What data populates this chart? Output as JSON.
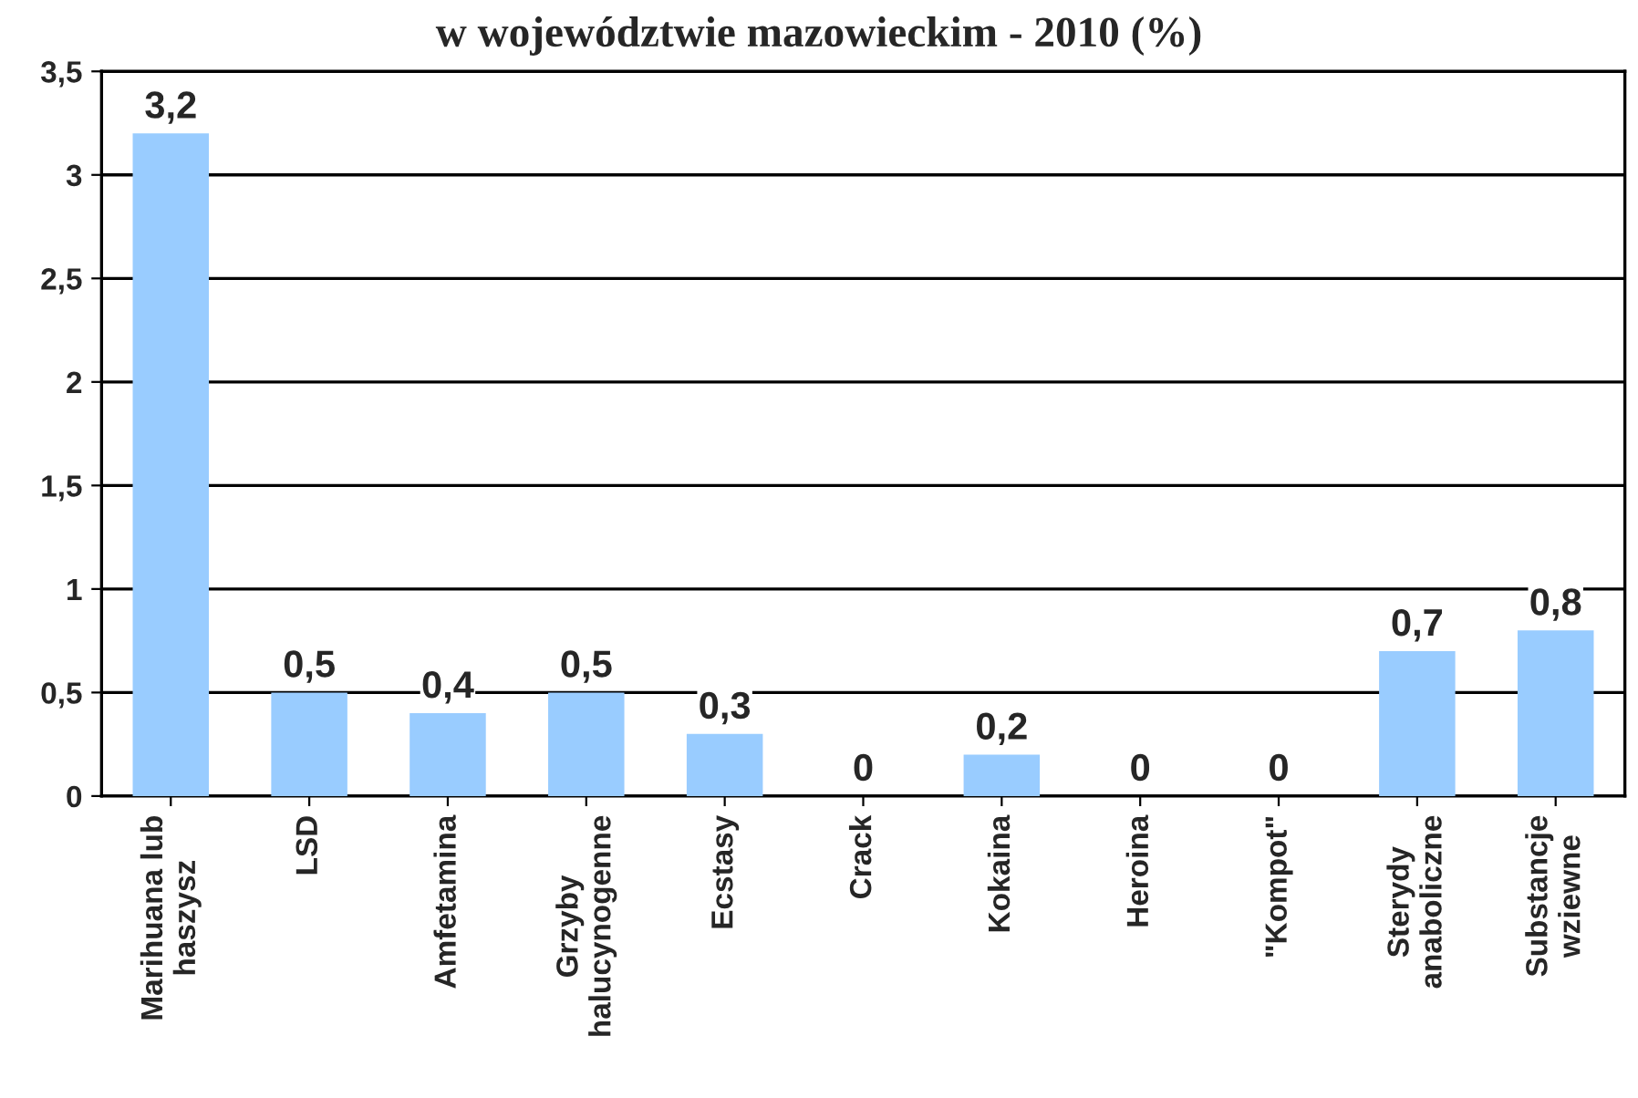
{
  "chart_data": {
    "type": "bar",
    "title": "w województwie mazowieckim - 2010 (%)",
    "categories": [
      "Marihuana lub\nhaszysz",
      "LSD",
      "Amfetamina",
      "Grzyby\nhalucynogenne",
      "Ecstasy",
      "Crack",
      "Kokaina",
      "Heroina",
      "\"Kompot\"",
      "Sterydy\nanaboliczne",
      "Substancje\nwziewne"
    ],
    "values": [
      3.2,
      0.5,
      0.4,
      0.5,
      0.3,
      0,
      0.2,
      0,
      0,
      0.7,
      0.8
    ],
    "value_labels": [
      "3,2",
      "0,5",
      "0,4",
      "0,5",
      "0,3",
      "0",
      "0,2",
      "0",
      "0",
      "0,7",
      "0,8"
    ],
    "color": "#99ccff",
    "ylim": [
      0,
      3.5
    ],
    "yticks": [
      0,
      {
        "value": 0.5,
        "label": "0,5"
      },
      1,
      {
        "value": 1.5,
        "label": "1,5"
      },
      2,
      {
        "value": 2.5,
        "label": "2,5"
      },
      3,
      {
        "value": 3.5,
        "label": "3,5"
      }
    ],
    "grid": "y",
    "legend": false
  }
}
